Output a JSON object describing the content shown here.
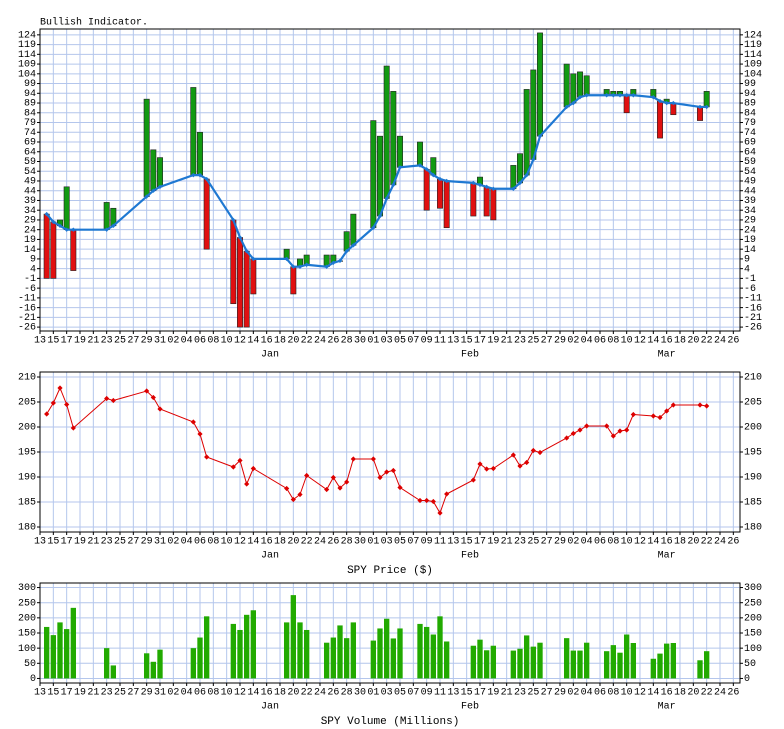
{
  "chart_data": [
    {
      "type": "bar",
      "title": "Bullish Indicator.",
      "x": [
        1,
        2,
        3,
        4,
        5,
        10,
        11,
        16,
        17,
        18,
        23,
        24,
        25,
        29,
        30,
        31,
        32,
        37,
        38,
        39,
        40,
        43,
        44,
        45,
        46,
        47,
        50,
        51,
        52,
        53,
        54,
        57,
        58,
        59,
        60,
        61,
        65,
        66,
        67,
        68,
        71,
        72,
        73,
        74,
        75,
        79,
        80,
        81,
        82,
        85,
        86,
        87,
        88,
        89,
        92,
        93,
        94,
        95,
        99,
        100
      ],
      "values": [
        -1,
        -1,
        29,
        46,
        3,
        38,
        35,
        91,
        65,
        61,
        97,
        74,
        14,
        -14,
        -26,
        -26,
        -9,
        14,
        -9,
        9,
        11,
        11,
        11,
        8,
        23,
        32,
        80,
        72,
        108,
        95,
        72,
        69,
        34,
        61,
        35,
        25,
        31,
        51,
        31,
        29,
        57,
        63,
        96,
        106,
        125,
        109,
        104,
        105,
        103,
        96,
        95,
        95,
        84,
        96,
        96,
        71,
        91,
        83,
        80,
        95
      ],
      "base": [
        32,
        28,
        26,
        24,
        24,
        24,
        26,
        41,
        44,
        46,
        52,
        52,
        50,
        29,
        20,
        13,
        9,
        9,
        5,
        5,
        6,
        5,
        7,
        8,
        13,
        16,
        25,
        31,
        40,
        47,
        56,
        57,
        55,
        52,
        50,
        49,
        48,
        47,
        46,
        45,
        45,
        48,
        52,
        60,
        72,
        87,
        89,
        92,
        93,
        93,
        93,
        93,
        93,
        93,
        92,
        90,
        89,
        89,
        87,
        87
      ],
      "up_color": "#129a12",
      "down_color": "#e01010",
      "line_color": "#1e78d2",
      "xlim": [
        0,
        105
      ],
      "xticks": [
        {
          "value": 0,
          "label": "13"
        },
        {
          "value": 2,
          "label": "15"
        },
        {
          "value": 4,
          "label": "17"
        },
        {
          "value": 6,
          "label": "19"
        },
        {
          "value": 8,
          "label": "21"
        },
        {
          "value": 10,
          "label": "23"
        },
        {
          "value": 12,
          "label": "25"
        },
        {
          "value": 14,
          "label": "27"
        },
        {
          "value": 16,
          "label": "29"
        },
        {
          "value": 18,
          "label": "31"
        },
        {
          "value": 20,
          "label": "02"
        },
        {
          "value": 22,
          "label": "04"
        },
        {
          "value": 24,
          "label": "06"
        },
        {
          "value": 26,
          "label": "08"
        },
        {
          "value": 28,
          "label": "10"
        },
        {
          "value": 30,
          "label": "12"
        },
        {
          "value": 32,
          "label": "14"
        },
        {
          "value": 34,
          "label": "16"
        },
        {
          "value": 36,
          "label": "18"
        },
        {
          "value": 38,
          "label": "20"
        },
        {
          "value": 40,
          "label": "22"
        },
        {
          "value": 42,
          "label": "24"
        },
        {
          "value": 44,
          "label": "26"
        },
        {
          "value": 46,
          "label": "28"
        },
        {
          "value": 48,
          "label": "30"
        },
        {
          "value": 50,
          "label": "01"
        },
        {
          "value": 52,
          "label": "03"
        },
        {
          "value": 54,
          "label": "05"
        },
        {
          "value": 56,
          "label": "07"
        },
        {
          "value": 58,
          "label": "09"
        },
        {
          "value": 60,
          "label": "11"
        },
        {
          "value": 62,
          "label": "13"
        },
        {
          "value": 64,
          "label": "15"
        },
        {
          "value": 66,
          "label": "17"
        },
        {
          "value": 68,
          "label": "19"
        },
        {
          "value": 70,
          "label": "21"
        },
        {
          "value": 72,
          "label": "23"
        },
        {
          "value": 74,
          "label": "25"
        },
        {
          "value": 76,
          "label": "27"
        },
        {
          "value": 78,
          "label": "29"
        },
        {
          "value": 80,
          "label": "02"
        },
        {
          "value": 82,
          "label": "04"
        },
        {
          "value": 84,
          "label": "06"
        },
        {
          "value": 86,
          "label": "08"
        },
        {
          "value": 88,
          "label": "10"
        },
        {
          "value": 90,
          "label": "12"
        },
        {
          "value": 92,
          "label": "14"
        },
        {
          "value": 94,
          "label": "16"
        },
        {
          "value": 96,
          "label": "18"
        },
        {
          "value": 98,
          "label": "20"
        },
        {
          "value": 100,
          "label": "22"
        },
        {
          "value": 102,
          "label": "24"
        },
        {
          "value": 104,
          "label": "26"
        }
      ],
      "month_ticks": [
        {
          "value": 34.5,
          "label": "Jan"
        },
        {
          "value": 64.5,
          "label": "Feb"
        },
        {
          "value": 94,
          "label": "Mar"
        }
      ],
      "ylim": [
        -28,
        127
      ],
      "yticks": [
        -26,
        -21,
        -16,
        -11,
        -6,
        -1,
        4,
        9,
        14,
        19,
        24,
        29,
        34,
        39,
        44,
        49,
        54,
        59,
        64,
        69,
        74,
        79,
        84,
        89,
        94,
        99,
        104,
        109,
        114,
        119,
        124
      ],
      "grid": true
    },
    {
      "type": "line",
      "xlabel": "SPY Price ($)",
      "x": [
        1,
        2,
        3,
        4,
        5,
        10,
        11,
        16,
        17,
        18,
        23,
        24,
        25,
        29,
        30,
        31,
        32,
        37,
        38,
        39,
        40,
        43,
        44,
        45,
        46,
        47,
        50,
        51,
        52,
        53,
        54,
        57,
        58,
        59,
        60,
        61,
        65,
        66,
        67,
        68,
        71,
        72,
        73,
        74,
        75,
        79,
        80,
        81,
        82,
        85,
        86,
        87,
        88,
        89,
        92,
        93,
        94,
        95,
        99,
        100
      ],
      "values": [
        202.6,
        204.8,
        207.8,
        204.5,
        199.8,
        205.7,
        205.3,
        207.2,
        205.9,
        203.6,
        201,
        198.6,
        194,
        192,
        193.3,
        188.6,
        191.7,
        187.7,
        185.5,
        186.5,
        190.3,
        187.5,
        189.9,
        187.8,
        189,
        193.6,
        193.6,
        189.9,
        191,
        191.3,
        187.9,
        185.3,
        185.3,
        185.1,
        182.8,
        186.6,
        189.4,
        192.6,
        191.6,
        191.7,
        194.4,
        192.2,
        192.9,
        195.3,
        194.9,
        197.8,
        198.7,
        199.4,
        200.2,
        200.2,
        198.2,
        199.2,
        199.4,
        202.5,
        202.2,
        201.9,
        203.2,
        204.4,
        204.4,
        204.2
      ],
      "color": "#dd0000",
      "xlim": [
        0,
        105
      ],
      "xticks": [
        {
          "value": 0,
          "label": "13"
        },
        {
          "value": 2,
          "label": "15"
        },
        {
          "value": 4,
          "label": "17"
        },
        {
          "value": 6,
          "label": "19"
        },
        {
          "value": 8,
          "label": "21"
        },
        {
          "value": 10,
          "label": "23"
        },
        {
          "value": 12,
          "label": "25"
        },
        {
          "value": 14,
          "label": "27"
        },
        {
          "value": 16,
          "label": "29"
        },
        {
          "value": 18,
          "label": "31"
        },
        {
          "value": 20,
          "label": "02"
        },
        {
          "value": 22,
          "label": "04"
        },
        {
          "value": 24,
          "label": "06"
        },
        {
          "value": 26,
          "label": "08"
        },
        {
          "value": 28,
          "label": "10"
        },
        {
          "value": 30,
          "label": "12"
        },
        {
          "value": 32,
          "label": "14"
        },
        {
          "value": 34,
          "label": "16"
        },
        {
          "value": 36,
          "label": "18"
        },
        {
          "value": 38,
          "label": "20"
        },
        {
          "value": 40,
          "label": "22"
        },
        {
          "value": 42,
          "label": "24"
        },
        {
          "value": 44,
          "label": "26"
        },
        {
          "value": 46,
          "label": "28"
        },
        {
          "value": 48,
          "label": "30"
        },
        {
          "value": 50,
          "label": "01"
        },
        {
          "value": 52,
          "label": "03"
        },
        {
          "value": 54,
          "label": "05"
        },
        {
          "value": 56,
          "label": "07"
        },
        {
          "value": 58,
          "label": "09"
        },
        {
          "value": 60,
          "label": "11"
        },
        {
          "value": 62,
          "label": "13"
        },
        {
          "value": 64,
          "label": "15"
        },
        {
          "value": 66,
          "label": "17"
        },
        {
          "value": 68,
          "label": "19"
        },
        {
          "value": 70,
          "label": "21"
        },
        {
          "value": 72,
          "label": "23"
        },
        {
          "value": 74,
          "label": "25"
        },
        {
          "value": 76,
          "label": "27"
        },
        {
          "value": 78,
          "label": "29"
        },
        {
          "value": 80,
          "label": "02"
        },
        {
          "value": 82,
          "label": "04"
        },
        {
          "value": 84,
          "label": "06"
        },
        {
          "value": 86,
          "label": "08"
        },
        {
          "value": 88,
          "label": "10"
        },
        {
          "value": 90,
          "label": "12"
        },
        {
          "value": 92,
          "label": "14"
        },
        {
          "value": 94,
          "label": "16"
        },
        {
          "value": 96,
          "label": "18"
        },
        {
          "value": 98,
          "label": "20"
        },
        {
          "value": 100,
          "label": "22"
        },
        {
          "value": 102,
          "label": "24"
        },
        {
          "value": 104,
          "label": "26"
        }
      ],
      "month_ticks": [
        {
          "value": 34.5,
          "label": "Jan"
        },
        {
          "value": 64.5,
          "label": "Feb"
        },
        {
          "value": 94,
          "label": "Mar"
        }
      ],
      "ylim": [
        179,
        211
      ],
      "yticks": [
        180,
        185,
        190,
        195,
        200,
        205,
        210
      ],
      "grid": true
    },
    {
      "type": "bar",
      "xlabel": "SPY Volume (Millions)",
      "x": [
        1,
        2,
        3,
        4,
        5,
        10,
        11,
        16,
        17,
        18,
        23,
        24,
        25,
        29,
        30,
        31,
        32,
        37,
        38,
        39,
        40,
        43,
        44,
        45,
        46,
        47,
        50,
        51,
        52,
        53,
        54,
        57,
        58,
        59,
        60,
        61,
        65,
        66,
        67,
        68,
        71,
        72,
        73,
        74,
        75,
        79,
        80,
        81,
        82,
        85,
        86,
        87,
        88,
        89,
        92,
        93,
        94,
        95,
        99,
        100
      ],
      "values": [
        170,
        143,
        185,
        163,
        233,
        100,
        43,
        83,
        55,
        95,
        100,
        135,
        205,
        180,
        160,
        210,
        225,
        185,
        275,
        185,
        160,
        118,
        135,
        175,
        133,
        185,
        125,
        165,
        197,
        132,
        165,
        180,
        170,
        145,
        205,
        122,
        108,
        128,
        93,
        108,
        92,
        98,
        142,
        105,
        118,
        133,
        92,
        92,
        118,
        90,
        110,
        85,
        145,
        117,
        65,
        82,
        115,
        117,
        60,
        90
      ],
      "color": "#22aa00",
      "xlim": [
        0,
        105
      ],
      "xticks": [
        {
          "value": 0,
          "label": "13"
        },
        {
          "value": 2,
          "label": "15"
        },
        {
          "value": 4,
          "label": "17"
        },
        {
          "value": 6,
          "label": "19"
        },
        {
          "value": 8,
          "label": "21"
        },
        {
          "value": 10,
          "label": "23"
        },
        {
          "value": 12,
          "label": "25"
        },
        {
          "value": 14,
          "label": "27"
        },
        {
          "value": 16,
          "label": "29"
        },
        {
          "value": 18,
          "label": "31"
        },
        {
          "value": 20,
          "label": "02"
        },
        {
          "value": 22,
          "label": "04"
        },
        {
          "value": 24,
          "label": "06"
        },
        {
          "value": 26,
          "label": "08"
        },
        {
          "value": 28,
          "label": "10"
        },
        {
          "value": 30,
          "label": "12"
        },
        {
          "value": 32,
          "label": "14"
        },
        {
          "value": 34,
          "label": "16"
        },
        {
          "value": 36,
          "label": "18"
        },
        {
          "value": 38,
          "label": "20"
        },
        {
          "value": 40,
          "label": "22"
        },
        {
          "value": 42,
          "label": "24"
        },
        {
          "value": 44,
          "label": "26"
        },
        {
          "value": 46,
          "label": "28"
        },
        {
          "value": 48,
          "label": "30"
        },
        {
          "value": 50,
          "label": "01"
        },
        {
          "value": 52,
          "label": "03"
        },
        {
          "value": 54,
          "label": "05"
        },
        {
          "value": 56,
          "label": "07"
        },
        {
          "value": 58,
          "label": "09"
        },
        {
          "value": 60,
          "label": "11"
        },
        {
          "value": 62,
          "label": "13"
        },
        {
          "value": 64,
          "label": "15"
        },
        {
          "value": 66,
          "label": "17"
        },
        {
          "value": 68,
          "label": "19"
        },
        {
          "value": 70,
          "label": "21"
        },
        {
          "value": 72,
          "label": "23"
        },
        {
          "value": 74,
          "label": "25"
        },
        {
          "value": 76,
          "label": "27"
        },
        {
          "value": 78,
          "label": "29"
        },
        {
          "value": 80,
          "label": "02"
        },
        {
          "value": 82,
          "label": "04"
        },
        {
          "value": 84,
          "label": "06"
        },
        {
          "value": 86,
          "label": "08"
        },
        {
          "value": 88,
          "label": "10"
        },
        {
          "value": 90,
          "label": "12"
        },
        {
          "value": 92,
          "label": "14"
        },
        {
          "value": 94,
          "label": "16"
        },
        {
          "value": 96,
          "label": "18"
        },
        {
          "value": 98,
          "label": "20"
        },
        {
          "value": 100,
          "label": "22"
        },
        {
          "value": 102,
          "label": "24"
        },
        {
          "value": 104,
          "label": "26"
        }
      ],
      "month_ticks": [
        {
          "value": 34.5,
          "label": "Jan"
        },
        {
          "value": 64.5,
          "label": "Feb"
        },
        {
          "value": 94,
          "label": "Mar"
        }
      ],
      "ylim": [
        -15,
        315
      ],
      "yticks": [
        0,
        50,
        100,
        150,
        200,
        250,
        300
      ],
      "grid": true
    }
  ]
}
